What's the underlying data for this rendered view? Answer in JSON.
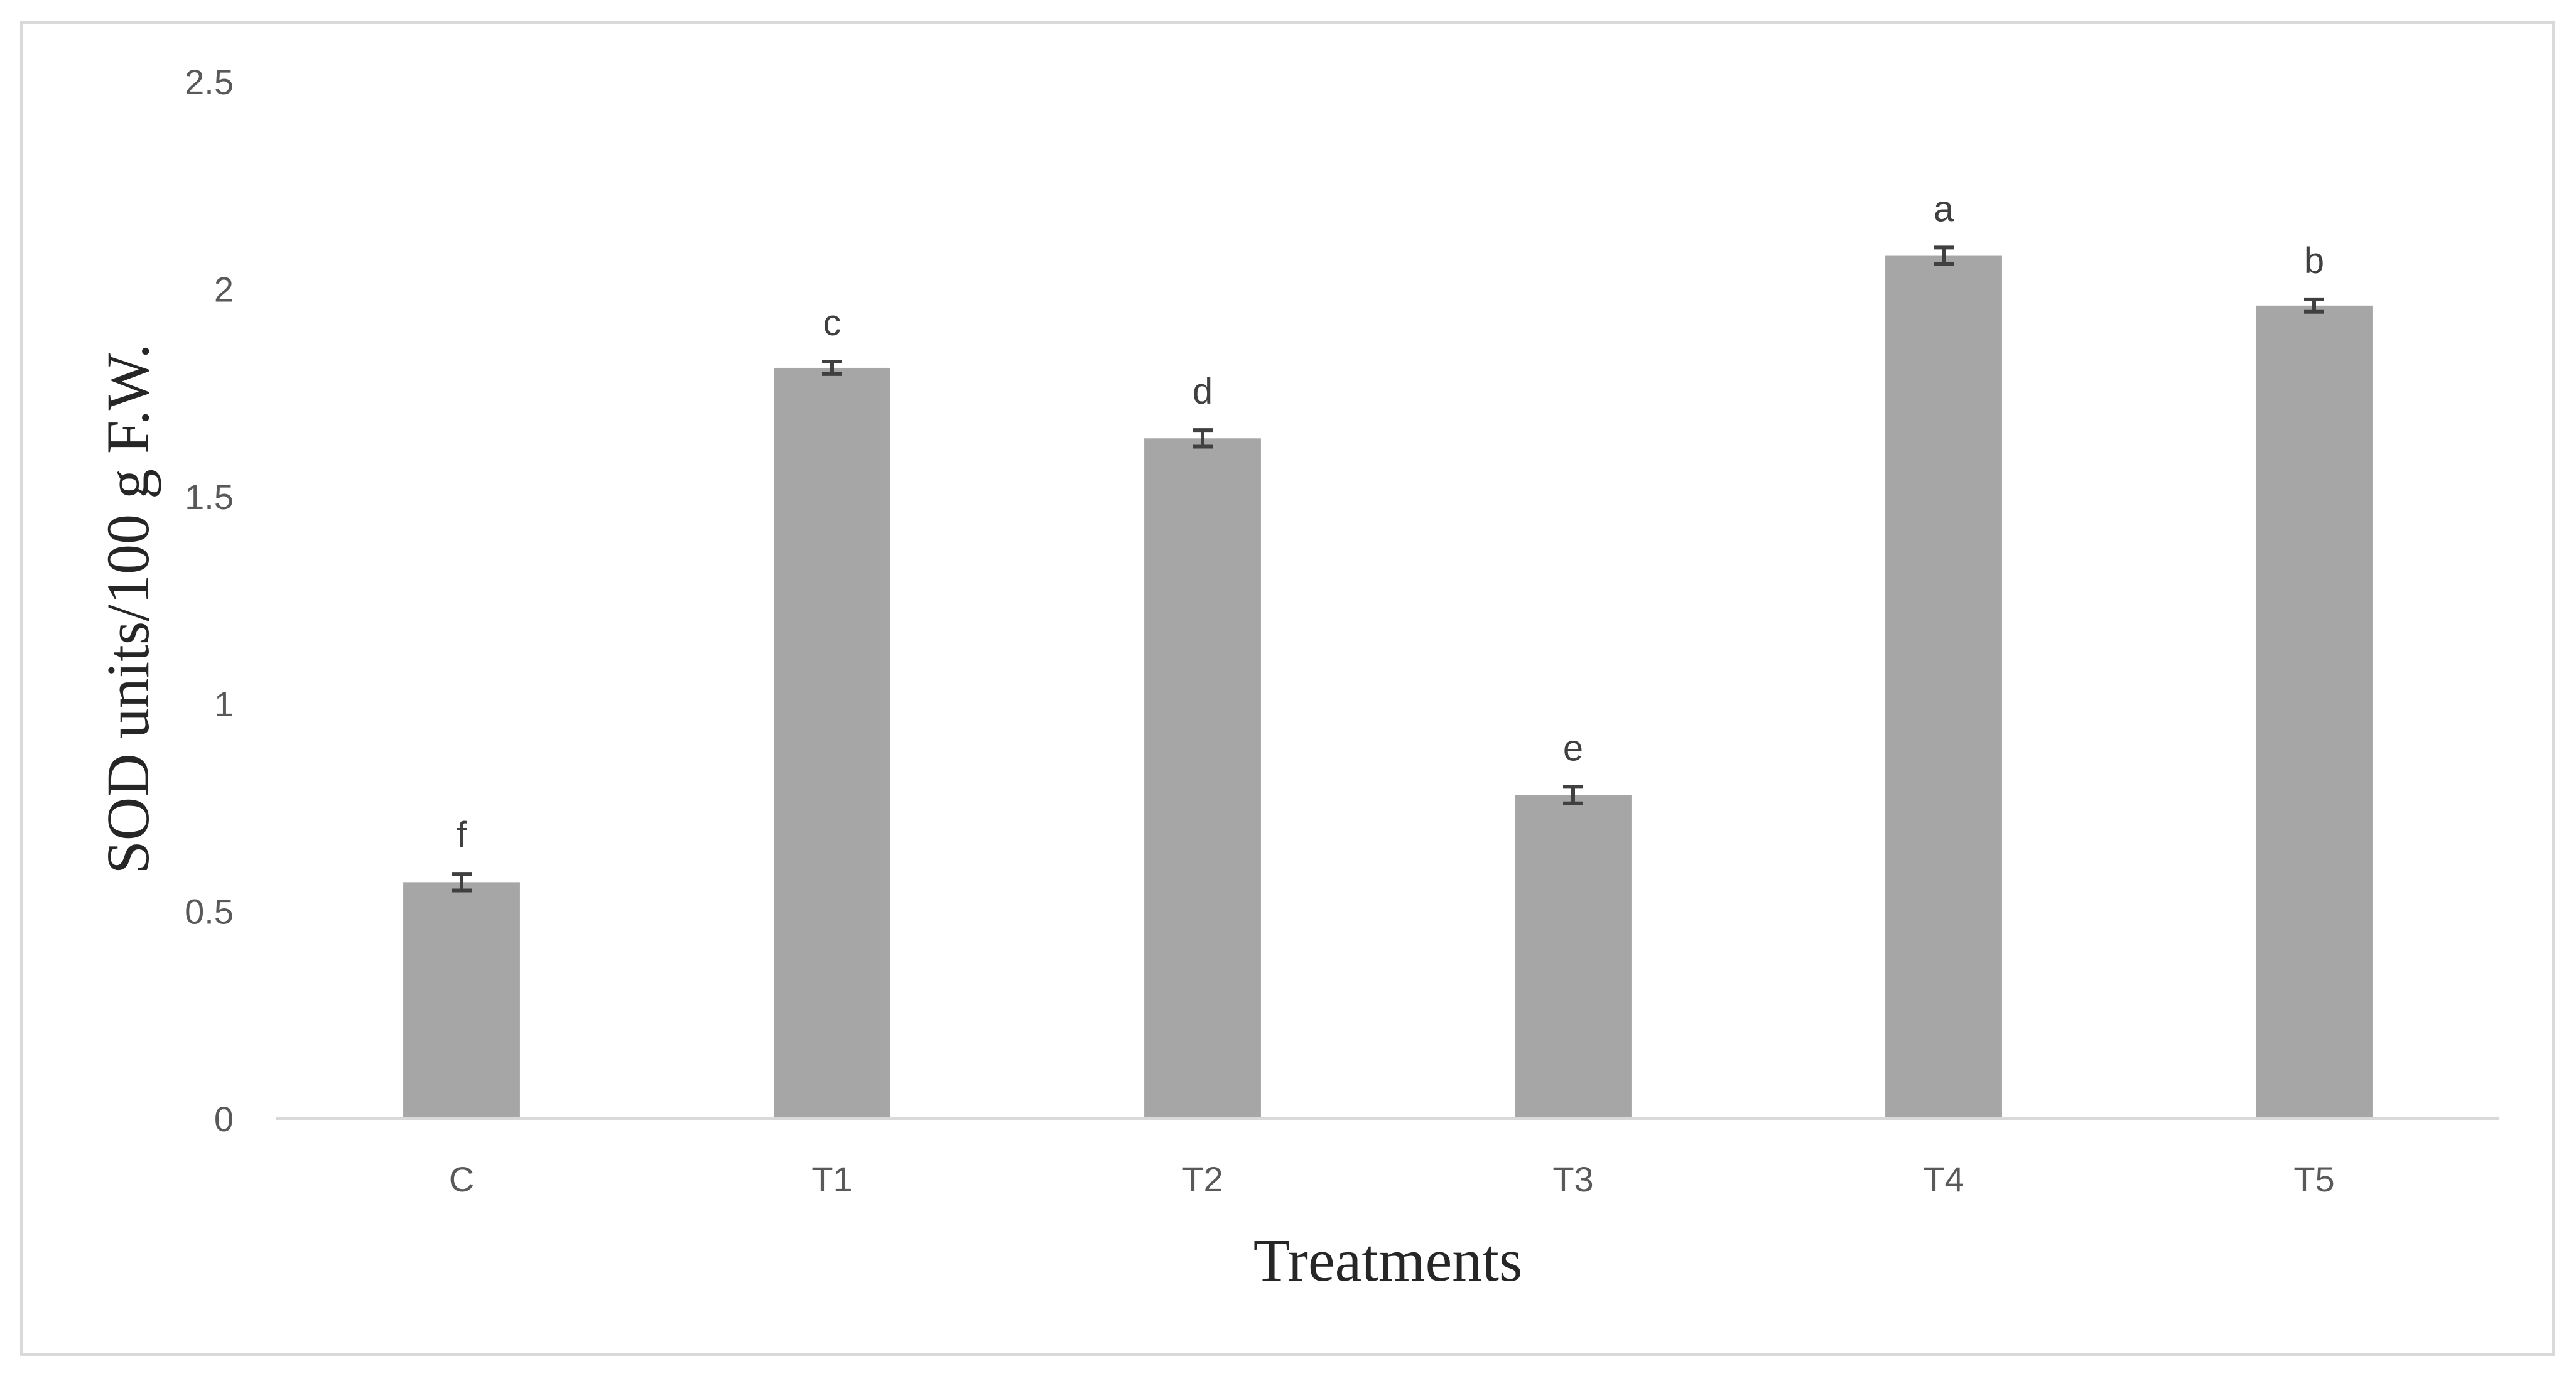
{
  "chart_data": {
    "type": "bar",
    "title": "",
    "xlabel": "Treatments",
    "ylabel": "SOD units/100 g F.W.",
    "ylim": [
      0,
      2.5
    ],
    "yticks": [
      "0",
      "0.5",
      "1",
      "1.5",
      "2",
      "2.5"
    ],
    "grid": false,
    "legend": "none",
    "bar_color": "#a6a6a6",
    "error_bar_color": "#404040",
    "categories": [
      "C",
      "T1",
      "T2",
      "T3",
      "T4",
      "T5"
    ],
    "values": [
      0.57,
      1.81,
      1.64,
      0.78,
      2.08,
      1.96
    ],
    "errors": [
      0.02,
      0.015,
      0.02,
      0.02,
      0.02,
      0.015
    ],
    "significance_letters": [
      "f",
      "c",
      "d",
      "e",
      "a",
      "b"
    ]
  }
}
